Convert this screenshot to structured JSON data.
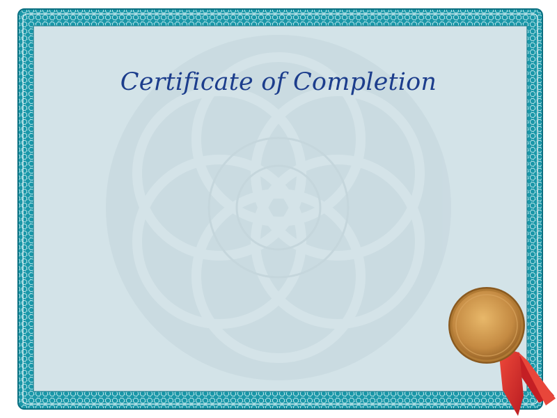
{
  "certificate": {
    "title": "Certificate of Completion"
  },
  "colors": {
    "border_teal": "#0f8fa0",
    "border_light": "#bfe6ea",
    "panel": "#d3e3e8",
    "title": "#1c3d8c",
    "seal_gold": "#c8924a",
    "ribbon_red": "#d42a2a"
  },
  "icons": {
    "seal": "gold-medal-seal-icon",
    "ribbon": "red-ribbon-icon",
    "watermark": "rosette-watermark-icon"
  }
}
